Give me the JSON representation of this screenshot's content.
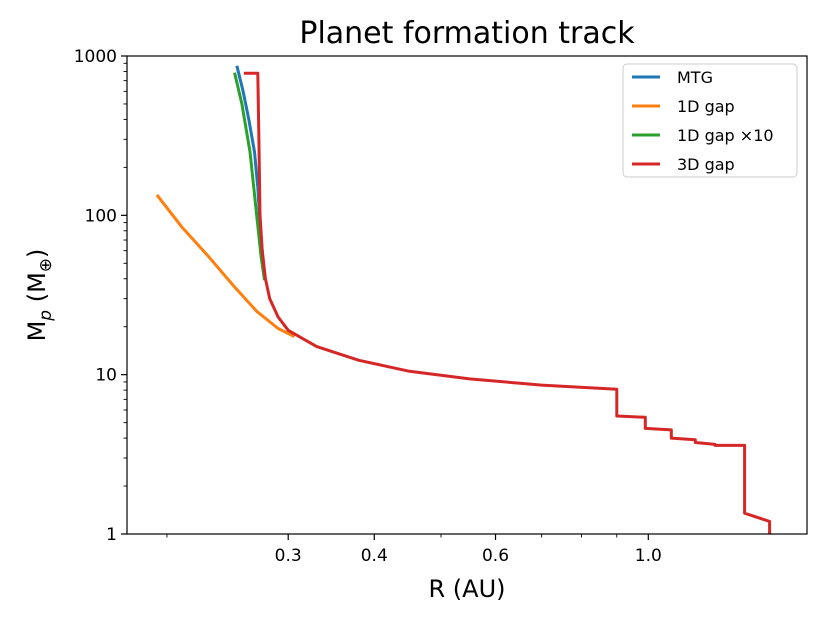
{
  "chart_data": {
    "type": "line",
    "title": "Planet formation track",
    "xlabel": "R (AU)",
    "ylabel": "M",
    "ylabel_sub": "p",
    "ylabel_rest": " (M",
    "ylabel_sub2": "⊕",
    "ylabel_close": ")",
    "xscale": "log",
    "yscale": "log",
    "xlim": [
      0.175,
      1.7
    ],
    "ylim": [
      1,
      1000
    ],
    "xticks": [
      0.3,
      0.4,
      0.6,
      1.0
    ],
    "xtick_labels": [
      "0.3",
      "0.4",
      "0.6",
      "1.0"
    ],
    "yticks": [
      1,
      10,
      100,
      1000
    ],
    "ytick_labels": [
      "1",
      "10",
      "100",
      "1000"
    ],
    "legend_position": "top-right",
    "grid": false,
    "series": [
      {
        "name": "MTG",
        "color": "#1f77b4",
        "x": [
          0.253,
          0.258,
          0.263,
          0.268,
          0.271,
          0.273,
          0.275,
          0.277
        ],
        "y": [
          850,
          600,
          400,
          250,
          150,
          90,
          60,
          45
        ]
      },
      {
        "name": "1D gap",
        "color": "#ff7f0e",
        "x": [
          0.194,
          0.21,
          0.23,
          0.25,
          0.27,
          0.29,
          0.305
        ],
        "y": [
          132,
          85,
          55,
          36,
          25,
          19.5,
          17.5
        ]
      },
      {
        "name": "1D gap ×10",
        "color": "#2ca02c",
        "x": [
          0.251,
          0.257,
          0.264,
          0.27,
          0.274,
          0.277
        ],
        "y": [
          770,
          500,
          250,
          100,
          55,
          40
        ]
      },
      {
        "name": "3D gap",
        "color": "#d62728",
        "x": [
          0.26,
          0.271,
          0.272,
          0.273,
          0.275,
          0.278,
          0.282,
          0.29,
          0.3,
          0.33,
          0.38,
          0.45,
          0.55,
          0.7,
          0.9,
          0.9,
          0.99,
          0.99,
          1.08,
          1.08,
          1.17,
          1.17,
          1.25,
          1.25,
          1.38,
          1.38,
          1.5,
          1.5
        ],
        "y": [
          780,
          780,
          300,
          100,
          60,
          40,
          30,
          23,
          19,
          15,
          12.3,
          10.5,
          9.4,
          8.6,
          8.1,
          5.5,
          5.4,
          4.6,
          4.5,
          4.0,
          3.9,
          3.75,
          3.65,
          3.6,
          3.6,
          1.35,
          1.2,
          1.0
        ]
      }
    ]
  }
}
